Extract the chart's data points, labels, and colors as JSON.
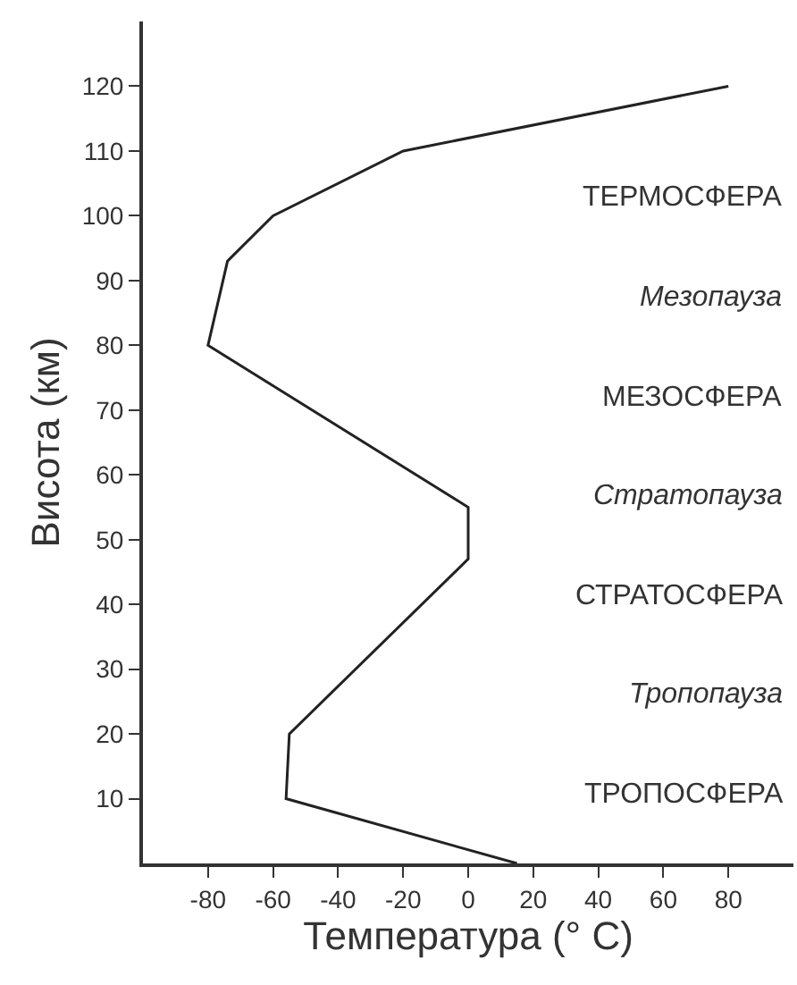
{
  "chart_data": {
    "type": "line",
    "xlabel": "Температура (° C)",
    "ylabel": "Висота (км)",
    "series": [
      {
        "color": "#222222",
        "x": [
          15,
          -56,
          -55,
          0,
          0,
          -80,
          -74,
          -60,
          -20,
          80
        ],
        "values": [
          0,
          10,
          20,
          47,
          55,
          80,
          93,
          100,
          110,
          120
        ]
      }
    ],
    "xlim": [
      -100,
      100
    ],
    "xticks": [
      -80,
      -60,
      -40,
      -20,
      0,
      20,
      40,
      60,
      80
    ],
    "ylim": [
      0,
      130
    ],
    "yticks": [
      10,
      20,
      30,
      40,
      50,
      60,
      70,
      80,
      90,
      100,
      110,
      120
    ],
    "grid": false,
    "marker": "none",
    "line_style": "solid",
    "annotations": [
      "ТЕРМОСФЕРА",
      "Мезопауза",
      "МЕЗОСФЕРА",
      "Стратопауза",
      "СТРАТОСФЕРА",
      "Тропопауза",
      "ТРОПОСФЕРА"
    ]
  }
}
